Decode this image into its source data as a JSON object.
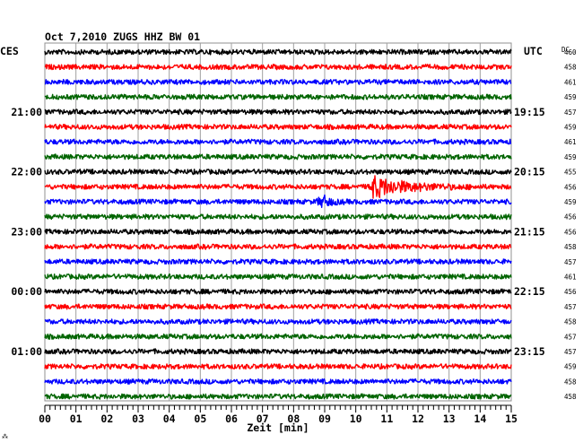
{
  "header": {
    "title": "Oct 7,2010   ZUGS HHZ BW 01",
    "left_zone": "CES",
    "right_zone": "UTC",
    "dc_label": "DC",
    "corner_mark": "⁂"
  },
  "chart_data": {
    "type": "line",
    "title": "Oct 7,2010   ZUGS HHZ BW 01",
    "xlabel": "Zeit [min]",
    "x_ticks": [
      "00",
      "01",
      "02",
      "03",
      "04",
      "05",
      "06",
      "07",
      "08",
      "09",
      "10",
      "11",
      "12",
      "13",
      "14",
      "15"
    ],
    "xlim": [
      0,
      15
    ],
    "trace_minutes_each": 15,
    "trace_count": 24,
    "trace_colors": [
      "#000000",
      "#ff0000",
      "#0000ff",
      "#006400"
    ],
    "left_time_labels": [
      {
        "row": 4,
        "label": "21:00"
      },
      {
        "row": 8,
        "label": "22:00"
      },
      {
        "row": 12,
        "label": "23:00"
      },
      {
        "row": 16,
        "label": "00:00"
      },
      {
        "row": 20,
        "label": "01:00"
      }
    ],
    "right_time_labels": [
      {
        "row": 4,
        "label": "19:15"
      },
      {
        "row": 8,
        "label": "20:15"
      },
      {
        "row": 12,
        "label": "21:15"
      },
      {
        "row": 16,
        "label": "22:15"
      },
      {
        "row": 20,
        "label": "23:15"
      }
    ],
    "dc_values": [
      "460",
      "458",
      "461",
      "459",
      "457",
      "459",
      "461",
      "459",
      "455",
      "456",
      "459",
      "456",
      "456",
      "458",
      "457",
      "461",
      "456",
      "457",
      "458",
      "457",
      "457",
      "459",
      "458",
      "458"
    ],
    "events": [
      {
        "row": 9,
        "start_min": 10.4,
        "peak_min": 10.55,
        "end_min": 14.2,
        "amplitude": "large"
      },
      {
        "row": 10,
        "start_min": 8.7,
        "peak_min": 8.95,
        "end_min": 10.0,
        "amplitude": "medium"
      }
    ]
  }
}
